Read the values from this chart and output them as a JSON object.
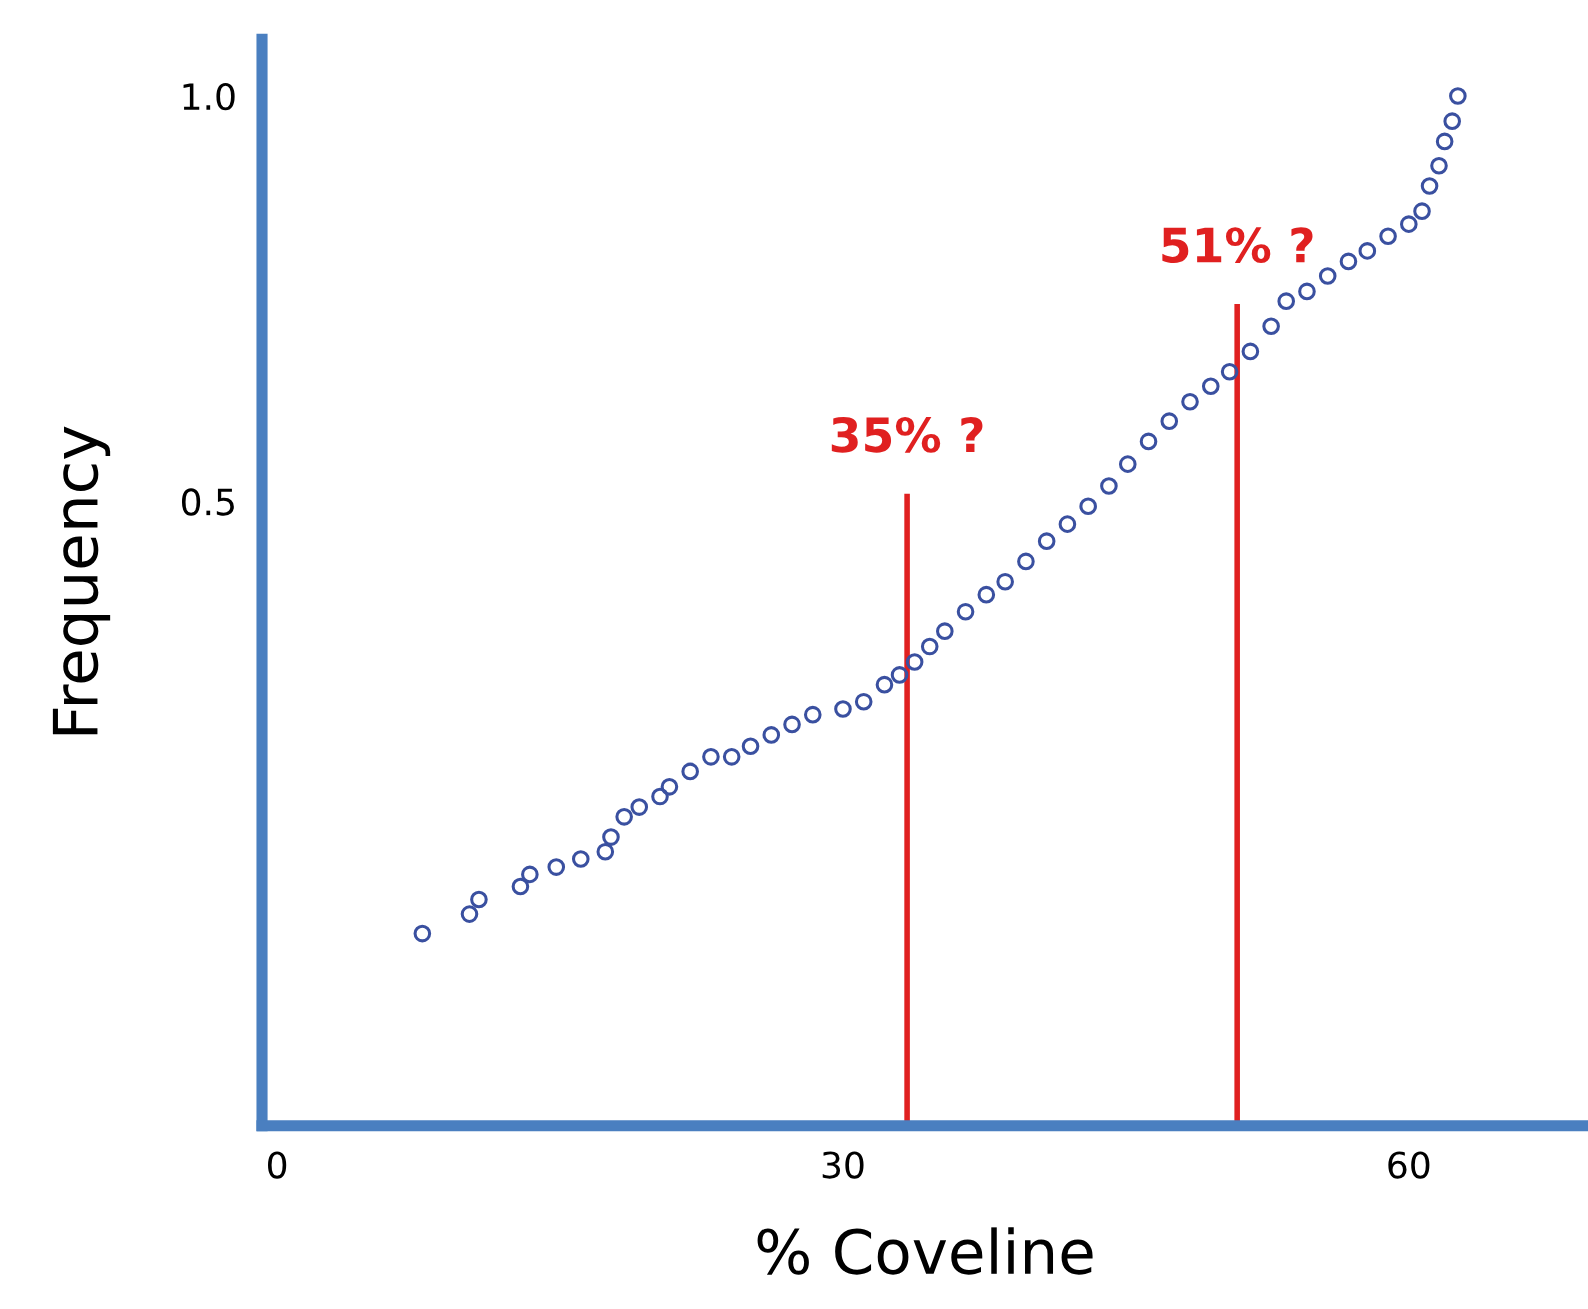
{
  "chart_data": {
    "type": "scatter",
    "xlabel": "% Coveline",
    "ylabel": "Frequency",
    "xlim": [
      -0.8,
      69.5
    ],
    "ylim": [
      -0.27,
      1.07
    ],
    "xticks": [
      0,
      30,
      60
    ],
    "yticks": [
      {
        "value": 0.5,
        "label": "0.5"
      },
      {
        "value": 1.0,
        "label": "1.0"
      }
    ],
    "grid": false,
    "marker": "circle",
    "series": [
      {
        "color": "#3a50a0",
        "x": [
          7.7,
          10.2,
          10.7,
          12.9,
          13.4,
          14.8,
          16.1,
          17.4,
          17.7,
          18.4,
          19.2,
          20.3,
          20.8,
          21.9,
          23.0,
          24.1,
          25.1,
          26.2,
          27.3,
          28.4,
          30.0,
          31.1,
          32.2,
          33.0,
          33.8,
          34.6,
          35.4,
          36.5,
          37.6,
          38.6,
          39.7,
          40.8,
          41.9,
          43.0,
          44.1,
          45.1,
          46.2,
          47.3,
          48.4,
          49.5,
          50.5,
          51.6,
          52.7,
          53.5,
          54.6,
          55.7,
          56.8,
          57.8,
          58.9,
          60.0,
          60.7,
          61.1,
          61.6,
          61.9,
          62.3,
          62.6
        ],
        "values": [
          -0.033,
          -0.009,
          0.009,
          0.025,
          0.04,
          0.049,
          0.059,
          0.068,
          0.086,
          0.111,
          0.123,
          0.136,
          0.148,
          0.167,
          0.185,
          0.185,
          0.198,
          0.212,
          0.225,
          0.237,
          0.244,
          0.253,
          0.274,
          0.286,
          0.302,
          0.321,
          0.34,
          0.364,
          0.385,
          0.401,
          0.426,
          0.451,
          0.472,
          0.494,
          0.519,
          0.546,
          0.574,
          0.599,
          0.623,
          0.642,
          0.66,
          0.685,
          0.716,
          0.747,
          0.759,
          0.778,
          0.796,
          0.809,
          0.827,
          0.842,
          0.858,
          0.889,
          0.914,
          0.944,
          0.969,
          1.0
        ]
      },
      {
        "type": "line",
        "color": "#e02020",
        "marker": "none",
        "x": [
          33.4,
          33.4
        ],
        "values": [
          -0.27,
          0.506
        ]
      },
      {
        "type": "line",
        "color": "#e02020",
        "marker": "none",
        "x": [
          50.9,
          50.9
        ],
        "values": [
          -0.27,
          0.74
        ]
      }
    ],
    "annotations": [
      {
        "text": "35% ?",
        "x": 33.4,
        "y": 0.506
      },
      {
        "text": "51% ?",
        "x": 50.9,
        "y": 0.74
      }
    ]
  }
}
